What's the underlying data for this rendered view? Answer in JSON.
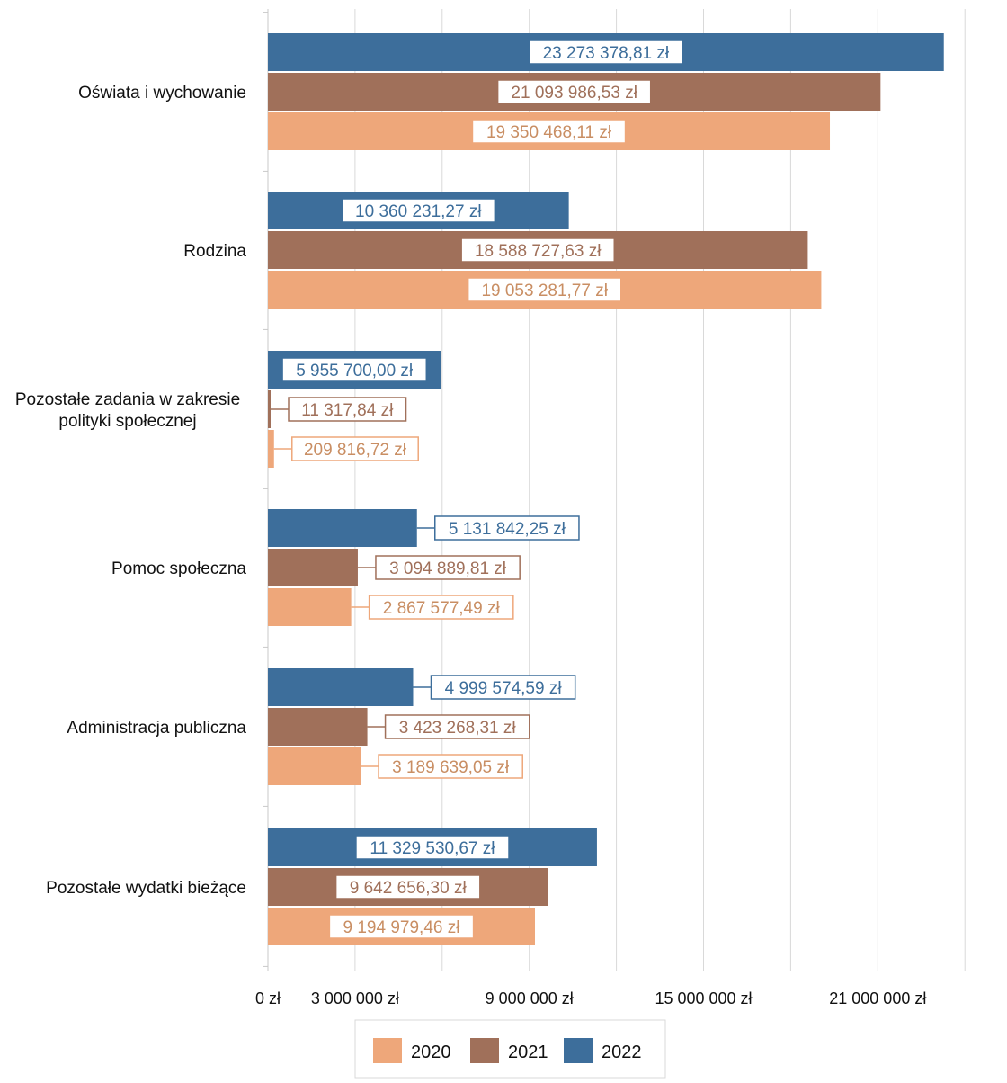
{
  "chart_data": {
    "type": "bar",
    "orientation": "horizontal",
    "grid": true,
    "legend_position": "bottom",
    "xlim": [
      0,
      25000000
    ],
    "x_ticks": [
      {
        "value": 0,
        "label": "0 zł"
      },
      {
        "value": 3000000,
        "label": "3 000 000 zł"
      },
      {
        "value": 9000000,
        "label": "9 000 000 zł"
      },
      {
        "value": 15000000,
        "label": "15 000 000 zł"
      },
      {
        "value": 21000000,
        "label": "21 000 000 zł"
      }
    ],
    "categories": [
      [
        "Oświata i wychowanie"
      ],
      [
        "Rodzina"
      ],
      [
        "Pozostałe zadania w zakresie",
        "polityki społecznej"
      ],
      [
        "Pomoc społeczna"
      ],
      [
        "Administracja publiczna"
      ],
      [
        "Pozostałe wydatki bieżące"
      ]
    ],
    "series": [
      {
        "name": "2022",
        "color": "#3d6e9b",
        "values": [
          23273378.81,
          10360231.27,
          5955700.0,
          5131842.25,
          4999574.59,
          11329530.67
        ],
        "labels": [
          "23 273 378,81 zł",
          "10 360 231,27 zł",
          "5 955 700,00 zł",
          "5 131 842,25 zł",
          "4 999 574,59 zł",
          "11 329 530,67 zł"
        ]
      },
      {
        "name": "2021",
        "color": "#a0705a",
        "values": [
          21093986.53,
          18588727.63,
          11317.84,
          3094889.81,
          3423268.31,
          9642656.3
        ],
        "labels": [
          "21 093 986,53 zł",
          "18 588 727,63 zł",
          "11 317,84 zł",
          "3 094 889,81 zł",
          "3 423 268,31 zł",
          "9 642 656,30 zł"
        ]
      },
      {
        "name": "2020",
        "color": "#eea77a",
        "values": [
          19350468.11,
          19053281.77,
          209816.72,
          2867577.49,
          3189639.05,
          9194979.46
        ],
        "labels": [
          "19 350 468,11 zł",
          "19 053 281,77 zł",
          "209 816,72 zł",
          "2 867 577,49 zł",
          "3 189 639,05 zł",
          "9 194 979,46 zł"
        ]
      }
    ],
    "legend": [
      {
        "name": "2020",
        "color": "#eea77a"
      },
      {
        "name": "2021",
        "color": "#a0705a"
      },
      {
        "name": "2022",
        "color": "#3d6e9b"
      }
    ]
  }
}
